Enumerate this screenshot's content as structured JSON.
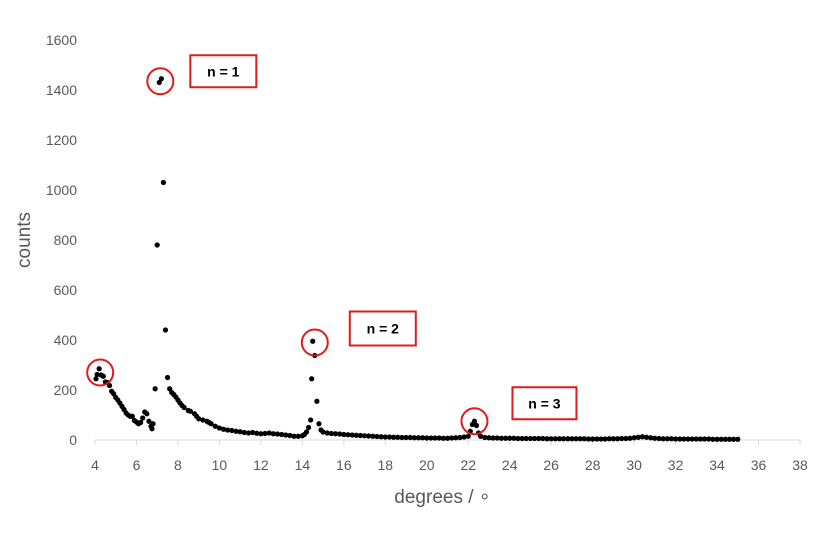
{
  "chart_data": {
    "type": "scatter",
    "xlabel": "degrees / ∘",
    "ylabel": "counts",
    "xlim": [
      4,
      38
    ],
    "ylim": [
      0,
      1600
    ],
    "x_ticks": [
      "4",
      "6",
      "8",
      "10",
      "12",
      "14",
      "16",
      "18",
      "20",
      "22",
      "24",
      "26",
      "28",
      "30",
      "32",
      "34",
      "36",
      "38"
    ],
    "y_ticks": [
      "0",
      "200",
      "400",
      "600",
      "800",
      "1000",
      "1200",
      "1400",
      "1600"
    ],
    "grid": false,
    "legend": "none",
    "marker_color": "#000000",
    "annotation_color": "#e01b1b",
    "annotations": [
      {
        "label": "n = 1",
        "x": 7.15,
        "y": 1435
      },
      {
        "label": "n = 2",
        "x": 14.6,
        "y": 390
      },
      {
        "label": "n = 3",
        "x": 22.3,
        "y": 75
      }
    ],
    "highlight": {
      "x": 4.25,
      "y": 270
    },
    "points": [
      [
        4.05,
        245
      ],
      [
        4.1,
        262
      ],
      [
        4.2,
        285
      ],
      [
        4.3,
        260
      ],
      [
        4.4,
        255
      ],
      [
        4.5,
        232
      ],
      [
        4.6,
        230
      ],
      [
        4.7,
        218
      ],
      [
        4.8,
        195
      ],
      [
        4.9,
        185
      ],
      [
        5.0,
        170
      ],
      [
        5.1,
        160
      ],
      [
        5.2,
        148
      ],
      [
        5.3,
        135
      ],
      [
        5.4,
        122
      ],
      [
        5.5,
        108
      ],
      [
        5.6,
        100
      ],
      [
        5.7,
        95
      ],
      [
        5.8,
        95
      ],
      [
        5.9,
        78
      ],
      [
        6.0,
        72
      ],
      [
        6.1,
        65
      ],
      [
        6.2,
        70
      ],
      [
        6.3,
        88
      ],
      [
        6.4,
        112
      ],
      [
        6.5,
        105
      ],
      [
        6.6,
        75
      ],
      [
        6.7,
        55
      ],
      [
        6.75,
        45
      ],
      [
        6.8,
        65
      ],
      [
        6.9,
        205
      ],
      [
        7.0,
        780
      ],
      [
        7.1,
        1430
      ],
      [
        7.2,
        1445
      ],
      [
        7.3,
        1030
      ],
      [
        7.4,
        440
      ],
      [
        7.5,
        250
      ],
      [
        7.6,
        205
      ],
      [
        7.7,
        190
      ],
      [
        7.8,
        182
      ],
      [
        7.9,
        172
      ],
      [
        8.0,
        160
      ],
      [
        8.1,
        148
      ],
      [
        8.2,
        138
      ],
      [
        8.3,
        130
      ],
      [
        8.5,
        118
      ],
      [
        8.6,
        115
      ],
      [
        8.8,
        105
      ],
      [
        8.9,
        95
      ],
      [
        9.0,
        85
      ],
      [
        9.2,
        80
      ],
      [
        9.4,
        75
      ],
      [
        9.5,
        70
      ],
      [
        9.6,
        65
      ],
      [
        9.8,
        55
      ],
      [
        10.0,
        48
      ],
      [
        10.2,
        43
      ],
      [
        10.4,
        40
      ],
      [
        10.6,
        38
      ],
      [
        10.8,
        35
      ],
      [
        11.0,
        33
      ],
      [
        11.2,
        30
      ],
      [
        11.4,
        28
      ],
      [
        11.6,
        30
      ],
      [
        11.8,
        27
      ],
      [
        12.0,
        25
      ],
      [
        12.2,
        26
      ],
      [
        12.4,
        28
      ],
      [
        12.6,
        25
      ],
      [
        12.8,
        24
      ],
      [
        13.0,
        22
      ],
      [
        13.2,
        20
      ],
      [
        13.4,
        18
      ],
      [
        13.6,
        15
      ],
      [
        13.8,
        15
      ],
      [
        14.0,
        17
      ],
      [
        14.1,
        22
      ],
      [
        14.2,
        32
      ],
      [
        14.3,
        50
      ],
      [
        14.4,
        80
      ],
      [
        14.45,
        245
      ],
      [
        14.5,
        395
      ],
      [
        14.6,
        338
      ],
      [
        14.7,
        155
      ],
      [
        14.8,
        65
      ],
      [
        14.9,
        40
      ],
      [
        15.0,
        32
      ],
      [
        15.2,
        28
      ],
      [
        15.4,
        26
      ],
      [
        15.6,
        25
      ],
      [
        15.8,
        24
      ],
      [
        16.0,
        22
      ],
      [
        16.2,
        21
      ],
      [
        16.4,
        20
      ],
      [
        16.6,
        19
      ],
      [
        16.8,
        18
      ],
      [
        17.0,
        17
      ],
      [
        17.2,
        16
      ],
      [
        17.4,
        15
      ],
      [
        17.6,
        14
      ],
      [
        17.8,
        13
      ],
      [
        18.0,
        12
      ],
      [
        18.2,
        12
      ],
      [
        18.4,
        11
      ],
      [
        18.6,
        11
      ],
      [
        18.8,
        10
      ],
      [
        19.0,
        10
      ],
      [
        19.2,
        10
      ],
      [
        19.4,
        9
      ],
      [
        19.6,
        9
      ],
      [
        19.8,
        9
      ],
      [
        20.0,
        8
      ],
      [
        20.2,
        8
      ],
      [
        20.4,
        8
      ],
      [
        20.6,
        8
      ],
      [
        20.8,
        7
      ],
      [
        21.0,
        7
      ],
      [
        21.2,
        8
      ],
      [
        21.4,
        9
      ],
      [
        21.6,
        10
      ],
      [
        21.8,
        12
      ],
      [
        22.0,
        15
      ],
      [
        22.1,
        35
      ],
      [
        22.2,
        62
      ],
      [
        22.3,
        75
      ],
      [
        22.4,
        58
      ],
      [
        22.5,
        28
      ],
      [
        22.6,
        15
      ],
      [
        22.8,
        10
      ],
      [
        23.0,
        9
      ],
      [
        23.2,
        8
      ],
      [
        23.4,
        8
      ],
      [
        23.6,
        7
      ],
      [
        23.8,
        7
      ],
      [
        24.0,
        7
      ],
      [
        24.2,
        7
      ],
      [
        24.4,
        6
      ],
      [
        24.6,
        6
      ],
      [
        24.8,
        6
      ],
      [
        25.0,
        6
      ],
      [
        25.2,
        6
      ],
      [
        25.4,
        6
      ],
      [
        25.6,
        6
      ],
      [
        25.8,
        5
      ],
      [
        26.0,
        5
      ],
      [
        26.2,
        5
      ],
      [
        26.4,
        5
      ],
      [
        26.6,
        5
      ],
      [
        26.8,
        5
      ],
      [
        27.0,
        5
      ],
      [
        27.2,
        5
      ],
      [
        27.4,
        5
      ],
      [
        27.6,
        5
      ],
      [
        27.8,
        4
      ],
      [
        28.0,
        4
      ],
      [
        28.2,
        4
      ],
      [
        28.4,
        4
      ],
      [
        28.6,
        4
      ],
      [
        28.8,
        5
      ],
      [
        29.0,
        5
      ],
      [
        29.2,
        5
      ],
      [
        29.4,
        6
      ],
      [
        29.6,
        6
      ],
      [
        29.8,
        7
      ],
      [
        30.0,
        9
      ],
      [
        30.2,
        11
      ],
      [
        30.4,
        13
      ],
      [
        30.6,
        11
      ],
      [
        30.8,
        9
      ],
      [
        31.0,
        7
      ],
      [
        31.2,
        6
      ],
      [
        31.4,
        5
      ],
      [
        31.6,
        5
      ],
      [
        31.8,
        5
      ],
      [
        32.0,
        4
      ],
      [
        32.2,
        4
      ],
      [
        32.4,
        4
      ],
      [
        32.6,
        4
      ],
      [
        32.8,
        4
      ],
      [
        33.0,
        4
      ],
      [
        33.2,
        4
      ],
      [
        33.4,
        4
      ],
      [
        33.6,
        4
      ],
      [
        33.8,
        3
      ],
      [
        34.0,
        3
      ],
      [
        34.2,
        3
      ],
      [
        34.4,
        3
      ],
      [
        34.6,
        3
      ],
      [
        34.8,
        3
      ],
      [
        35.0,
        3
      ]
    ]
  }
}
